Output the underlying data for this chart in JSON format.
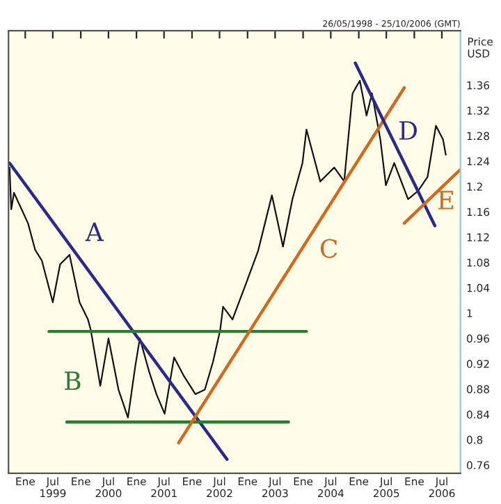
{
  "chart_data": {
    "type": "line",
    "title": "26/05/1998 - 25/10/2006 (GMT)",
    "ylabel": "Price\nUSD",
    "xlim": [
      "1998-09-13",
      "2006-10-31"
    ],
    "ylim": [
      0.747,
      1.446
    ],
    "xticks": [
      {
        "value": "1999-01-01",
        "label": "Ene"
      },
      {
        "value": "1999-07-01",
        "label": "Jul\n1999"
      },
      {
        "value": "2000-01-01",
        "label": "Ene"
      },
      {
        "value": "2000-07-01",
        "label": "Jul\n2000"
      },
      {
        "value": "2001-01-01",
        "label": "Ene"
      },
      {
        "value": "2001-07-01",
        "label": "Jul\n2001"
      },
      {
        "value": "2002-01-01",
        "label": "Ene"
      },
      {
        "value": "2002-07-01",
        "label": "Jul\n2002"
      },
      {
        "value": "2003-01-01",
        "label": "Ene"
      },
      {
        "value": "2003-07-01",
        "label": "Jul\n2003"
      },
      {
        "value": "2004-01-01",
        "label": "Ene"
      },
      {
        "value": "2004-07-01",
        "label": "Jul\n2004"
      },
      {
        "value": "2005-01-01",
        "label": "Ene"
      },
      {
        "value": "2005-07-01",
        "label": "Jul\n2005"
      },
      {
        "value": "2006-01-01",
        "label": "Ene"
      },
      {
        "value": "2006-07-01",
        "label": "Jul\n2006"
      }
    ],
    "yticks": [
      0.76,
      0.8,
      0.84,
      0.88,
      0.92,
      0.96,
      1,
      1.04,
      1.08,
      1.12,
      1.16,
      1.2,
      1.24,
      1.28,
      1.32,
      1.36
    ],
    "grid": false,
    "series": [
      {
        "color": "#111111",
        "x": [
          "1998-09-20",
          "1998-10-01",
          "1998-10-19",
          "1999-01-19",
          "1999-03-07",
          "1999-04-20",
          "1999-07-01",
          "1999-08-18",
          "1999-10-19",
          "1999-12-24",
          "2000-02-17",
          "2000-03-07",
          "2000-05-08",
          "2000-07-01",
          "2000-09-05",
          "2000-11-06",
          "2000-12-24",
          "2001-01-23",
          "2001-03-26",
          "2001-05-12",
          "2001-07-05",
          "2001-09-05",
          "2001-11-10",
          "2002-01-23",
          "2002-03-26",
          "2002-05-19",
          "2002-07-05",
          "2002-07-24",
          "2002-09-24",
          "2002-12-24",
          "2003-03-11",
          "2003-06-10",
          "2003-08-22",
          "2003-10-23",
          "2003-12-28",
          "2004-01-23",
          "2004-04-23",
          "2004-07-24",
          "2004-09-27",
          "2004-11-21",
          "2005-01-08",
          "2005-02-21",
          "2005-03-29",
          "2005-05-23",
          "2005-06-28",
          "2005-08-22",
          "2005-11-21",
          "2006-01-26",
          "2006-03-29",
          "2006-05-23",
          "2006-07-09",
          "2006-07-27"
        ],
        "values": [
          1.23,
          1.164,
          1.19,
          1.142,
          1.1,
          1.083,
          1.017,
          1.077,
          1.092,
          1.017,
          0.99,
          0.973,
          0.885,
          0.96,
          0.879,
          0.835,
          0.916,
          0.96,
          0.907,
          0.872,
          0.841,
          0.93,
          0.9,
          0.872,
          0.879,
          0.923,
          0.973,
          1.01,
          0.99,
          1.048,
          1.098,
          1.186,
          1.105,
          1.18,
          1.237,
          1.29,
          1.208,
          1.23,
          1.208,
          1.347,
          1.367,
          1.312,
          1.347,
          1.274,
          1.202,
          1.237,
          1.18,
          1.193,
          1.215,
          1.296,
          1.274,
          1.25
        ]
      },
      {
        "name": "A",
        "color": "#2a2a8a",
        "x": [
          "1998-09-20",
          "2002-08-19"
        ],
        "values": [
          1.237,
          0.769
        ]
      },
      {
        "name": "B",
        "color": "#2e7d32",
        "x": [
          "1999-06-06",
          "2004-01-23",
          null,
          "1999-10-01",
          "2003-09-27"
        ],
        "values": [
          0.971,
          0.971,
          null,
          0.828,
          0.828
        ]
      },
      {
        "name": "C",
        "color": "#d2691e",
        "x": [
          "2001-10-05",
          "2005-10-27"
        ],
        "values": [
          0.795,
          1.356
        ]
      },
      {
        "name": "D",
        "color": "#2a2a8a",
        "x": [
          "2004-12-09",
          "2006-05-16"
        ],
        "values": [
          1.395,
          1.138
        ]
      },
      {
        "name": "E",
        "color": "#d2691e",
        "x": [
          "2005-10-27",
          "2006-10-27"
        ],
        "values": [
          1.142,
          1.226
        ]
      }
    ]
  }
}
